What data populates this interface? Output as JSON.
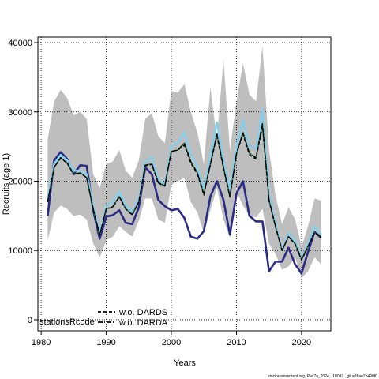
{
  "chart_data": {
    "type": "line",
    "title": "",
    "xlabel": "Years",
    "ylabel": "Recruits (age 1)",
    "xlim": [
      1979.5,
      2024.5
    ],
    "ylim": [
      -1600,
      40800
    ],
    "xticks": [
      1980,
      1990,
      2000,
      2010,
      2020
    ],
    "yticks": [
      0,
      10000,
      20000,
      30000,
      40000
    ],
    "grid": true,
    "legend_placement": "bottom-left",
    "legend_title": "stationsRcode",
    "x": [
      1981,
      1982,
      1983,
      1984,
      1985,
      1986,
      1987,
      1988,
      1989,
      1990,
      1991,
      1992,
      1993,
      1994,
      1995,
      1996,
      1997,
      1998,
      1999,
      2000,
      2001,
      2002,
      2003,
      2004,
      2005,
      2006,
      2007,
      2008,
      2009,
      2010,
      2011,
      2012,
      2013,
      2014,
      2015,
      2016,
      2017,
      2018,
      2019,
      2020,
      2021,
      2022,
      2023
    ],
    "band": {
      "name": "",
      "color": "#bebebe",
      "upper": [
        26000,
        31500,
        33200,
        32000,
        29500,
        30000,
        29000,
        21000,
        19000,
        22500,
        22800,
        24500,
        21500,
        20500,
        23000,
        29000,
        29800,
        26500,
        25500,
        33000,
        32800,
        34000,
        30000,
        27000,
        22500,
        33500,
        26000,
        37500,
        24500,
        31500,
        37000,
        32500,
        31500,
        39500,
        24500,
        18000,
        13800,
        16200,
        14500,
        10500,
        13500,
        17500,
        17200
      ],
      "lower": [
        11500,
        15500,
        16500,
        16000,
        15000,
        15200,
        14500,
        11000,
        9000,
        11500,
        12000,
        13500,
        12700,
        12000,
        14300,
        17500,
        17500,
        14500,
        14000,
        19500,
        20000,
        20500,
        17000,
        15500,
        12500,
        15800,
        19000,
        14500,
        11800,
        18500,
        16500,
        15000,
        14800,
        16000,
        11000,
        9500,
        7200,
        7700,
        9000,
        6000,
        7000,
        9000,
        8000
      ]
    },
    "series": [
      {
        "name": "",
        "color": "#2b2a85",
        "style": "solid",
        "width": 2.6,
        "values": [
          15000,
          23000,
          24200,
          23200,
          21000,
          22300,
          22200,
          15800,
          11700,
          14900,
          15100,
          15800,
          14000,
          13800,
          16200,
          22000,
          21000,
          17300,
          16400,
          15800,
          16000,
          14700,
          12000,
          11700,
          12800,
          17800,
          20000,
          17300,
          12300,
          18200,
          20000,
          15000,
          14200,
          14200,
          7000,
          8400,
          8400,
          10400,
          8000,
          6700,
          9800,
          12700,
          11800
        ]
      },
      {
        "name": "",
        "color": "#87ceeb",
        "style": "solid",
        "width": 2.6,
        "values": [
          17500,
          22500,
          23800,
          23000,
          21500,
          21500,
          21000,
          16500,
          12500,
          16500,
          17000,
          18500,
          16500,
          15500,
          17500,
          22800,
          23500,
          20300,
          19500,
          25000,
          25600,
          27000,
          24000,
          22000,
          18800,
          23500,
          28500,
          23000,
          18700,
          25000,
          28800,
          25000,
          24700,
          30300,
          18000,
          14000,
          10000,
          12500,
          11500,
          8800,
          11000,
          13500,
          12300
        ]
      },
      {
        "name": "",
        "color": "#2e8b6e",
        "style": "solid",
        "width": 1.6,
        "values": [
          17000,
          22000,
          23400,
          22600,
          21000,
          21200,
          20500,
          16000,
          12200,
          16000,
          16300,
          17800,
          16000,
          15200,
          17000,
          22300,
          22500,
          19800,
          19300,
          24300,
          24500,
          25500,
          22800,
          21200,
          18200,
          22500,
          26800,
          22000,
          17800,
          24000,
          27000,
          24000,
          23400,
          28300,
          17300,
          13500,
          10000,
          12000,
          11000,
          8700,
          10600,
          12700,
          12000
        ]
      },
      {
        "name": "w.o. DARDS",
        "color": "#000000",
        "style": "dashed",
        "width": 1.4,
        "values": [
          17000,
          22000,
          23300,
          22600,
          21000,
          21200,
          20500,
          16000,
          12200,
          16000,
          16200,
          17700,
          16000,
          15100,
          17000,
          22200,
          22400,
          19700,
          19300,
          24300,
          24500,
          25200,
          22600,
          21000,
          18000,
          22400,
          26600,
          21800,
          17700,
          23900,
          26800,
          23800,
          23200,
          28000,
          17200,
          13400,
          10000,
          12000,
          10900,
          8600,
          10500,
          12600,
          11900
        ]
      },
      {
        "name": "w.o. DARDA",
        "color": "#000000",
        "style": "dashdot",
        "width": 1.4,
        "values": [
          17000,
          22000,
          23400,
          22600,
          21000,
          21200,
          20500,
          16000,
          12200,
          16000,
          16300,
          17800,
          16000,
          15200,
          17000,
          22300,
          22500,
          19800,
          19300,
          24300,
          24500,
          25500,
          22800,
          21200,
          18200,
          22500,
          26800,
          22000,
          17800,
          24000,
          27000,
          24000,
          23400,
          28300,
          17300,
          13500,
          10000,
          12000,
          11000,
          8700,
          10600,
          12700,
          12000
        ]
      }
    ]
  },
  "footer": {
    "credit": "stockassessment.org, Ple.7a_2024, r18033 , git e38ae2b498f0"
  }
}
